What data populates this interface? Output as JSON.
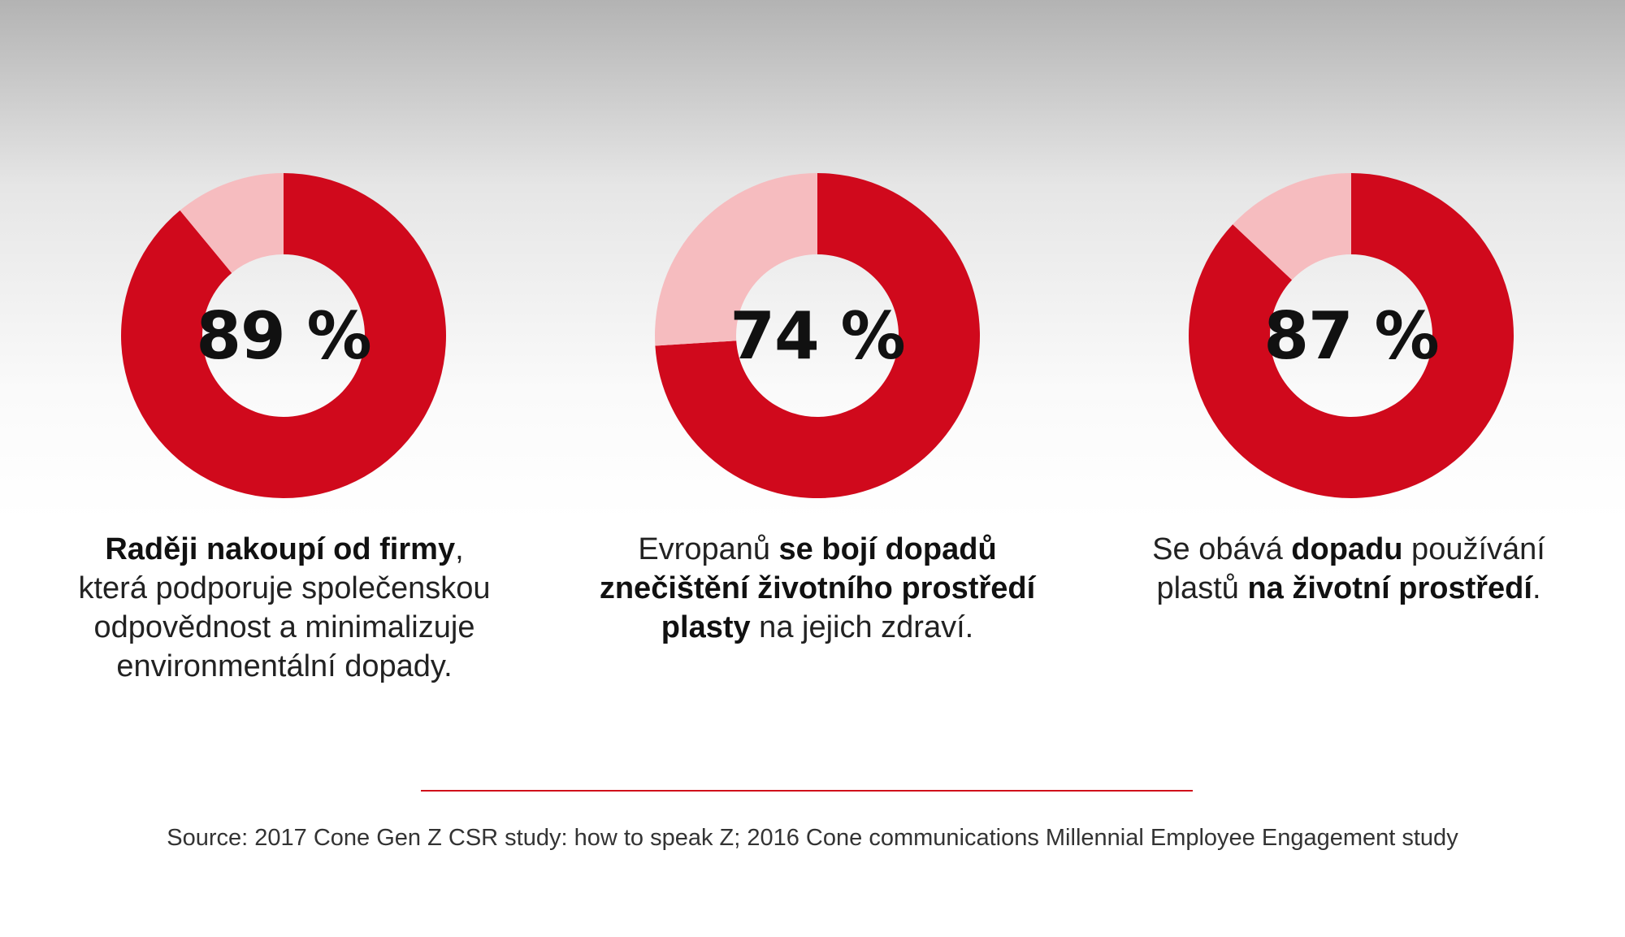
{
  "colors": {
    "filled": "#d0091c",
    "remainder": "#f6bcbf",
    "hole": "#ffffff",
    "rule": "#d0101a"
  },
  "chart_data": [
    {
      "type": "pie",
      "value": 89,
      "label": "89 %",
      "caption_parts": [
        {
          "text": "Raději nakoupí od firmy",
          "bold": true
        },
        {
          "text": ",",
          "bold": false
        },
        {
          "text": "\n",
          "bold": false
        },
        {
          "text": "která podporuje společenskou",
          "bold": false
        },
        {
          "text": "\n",
          "bold": false
        },
        {
          "text": "odpovědnost a minimalizuje",
          "bold": false
        },
        {
          "text": "\n",
          "bold": false
        },
        {
          "text": "environmentální dopady.",
          "bold": false
        }
      ]
    },
    {
      "type": "pie",
      "value": 74,
      "label": "74 %",
      "caption_parts": [
        {
          "text": "Evropanů ",
          "bold": false
        },
        {
          "text": "se bojí dopadů",
          "bold": true
        },
        {
          "text": "\n",
          "bold": false
        },
        {
          "text": "znečištění životního prostředí",
          "bold": true
        },
        {
          "text": "\n",
          "bold": false
        },
        {
          "text": "plasty",
          "bold": true
        },
        {
          "text": " na jejich zdraví.",
          "bold": false
        }
      ]
    },
    {
      "type": "pie",
      "value": 87,
      "label": "87 %",
      "caption_parts": [
        {
          "text": "Se obává ",
          "bold": false
        },
        {
          "text": "dopadu",
          "bold": true
        },
        {
          "text": " používání",
          "bold": false
        },
        {
          "text": "\n",
          "bold": false
        },
        {
          "text": "plastů ",
          "bold": false
        },
        {
          "text": "na životní prostředí",
          "bold": true
        },
        {
          "text": ".",
          "bold": false
        }
      ]
    }
  ],
  "footer": {
    "source": "Source: 2017 Cone Gen Z CSR study: how to speak Z; 2016 Cone communications Millennial Employee Engagement study"
  }
}
